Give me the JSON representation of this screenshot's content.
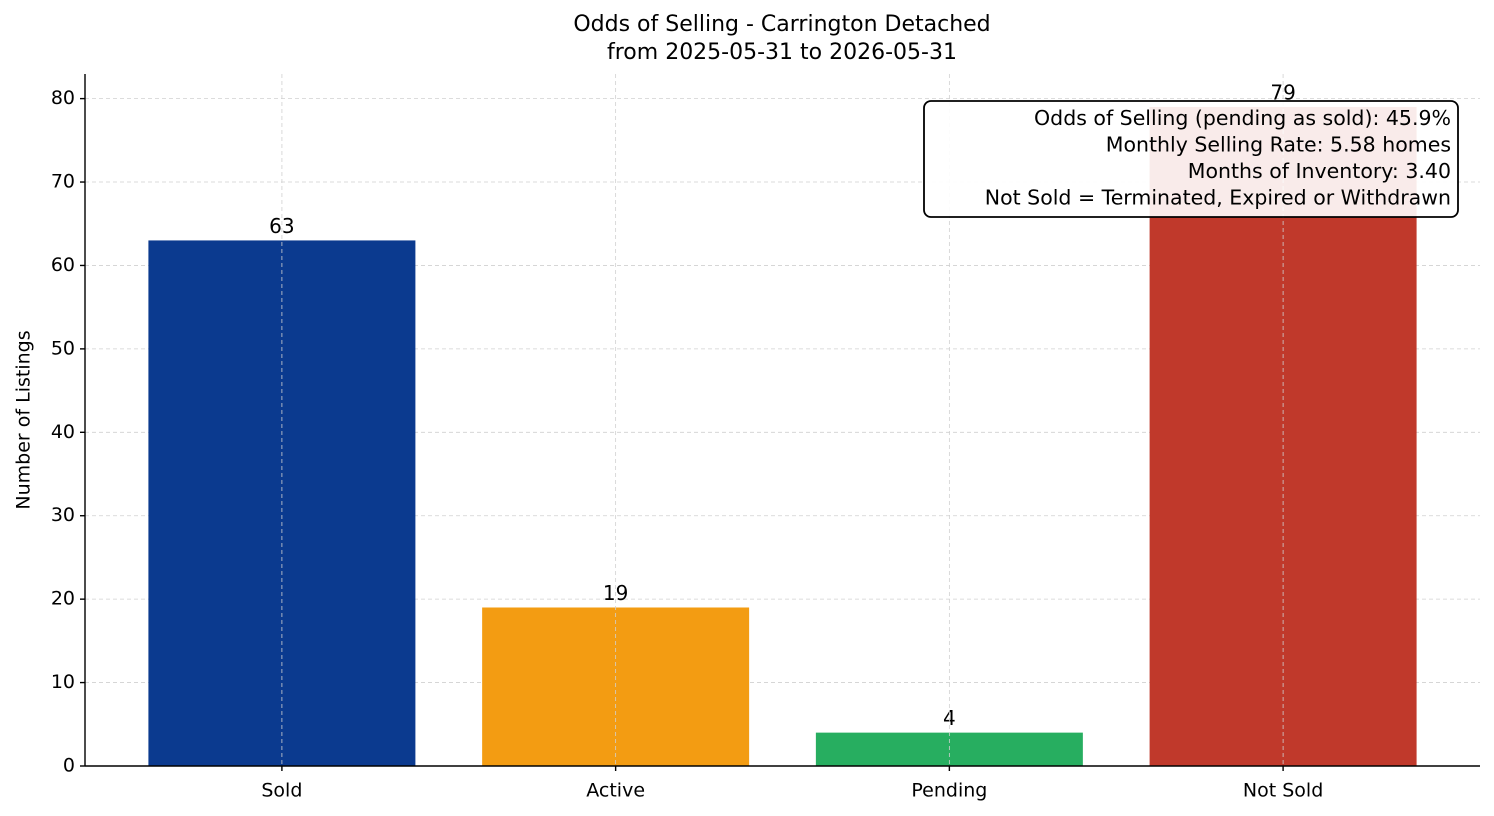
{
  "chart_data": {
    "type": "bar",
    "title": "Odds of Selling - Carrington Detached",
    "subtitle": "from 2025-05-31 to 2026-05-31",
    "y_label": "Number of Listings",
    "categories": [
      "Sold",
      "Active",
      "Pending",
      "Not Sold"
    ],
    "values": [
      63,
      19,
      4,
      79
    ],
    "colors": [
      "#0b3a8f",
      "#f39c12",
      "#27ae60",
      "#c0392b"
    ],
    "ylim": [
      0,
      82.95
    ],
    "yticks": [
      0,
      10,
      20,
      30,
      40,
      50,
      60,
      70,
      80
    ],
    "grid": true,
    "annotations": [
      "Odds of Selling (pending as sold): 45.9%",
      "Monthly Selling Rate: 5.58 homes",
      "Months of Inventory: 3.40",
      "Not Sold = Terminated, Expired or Withdrawn"
    ]
  }
}
